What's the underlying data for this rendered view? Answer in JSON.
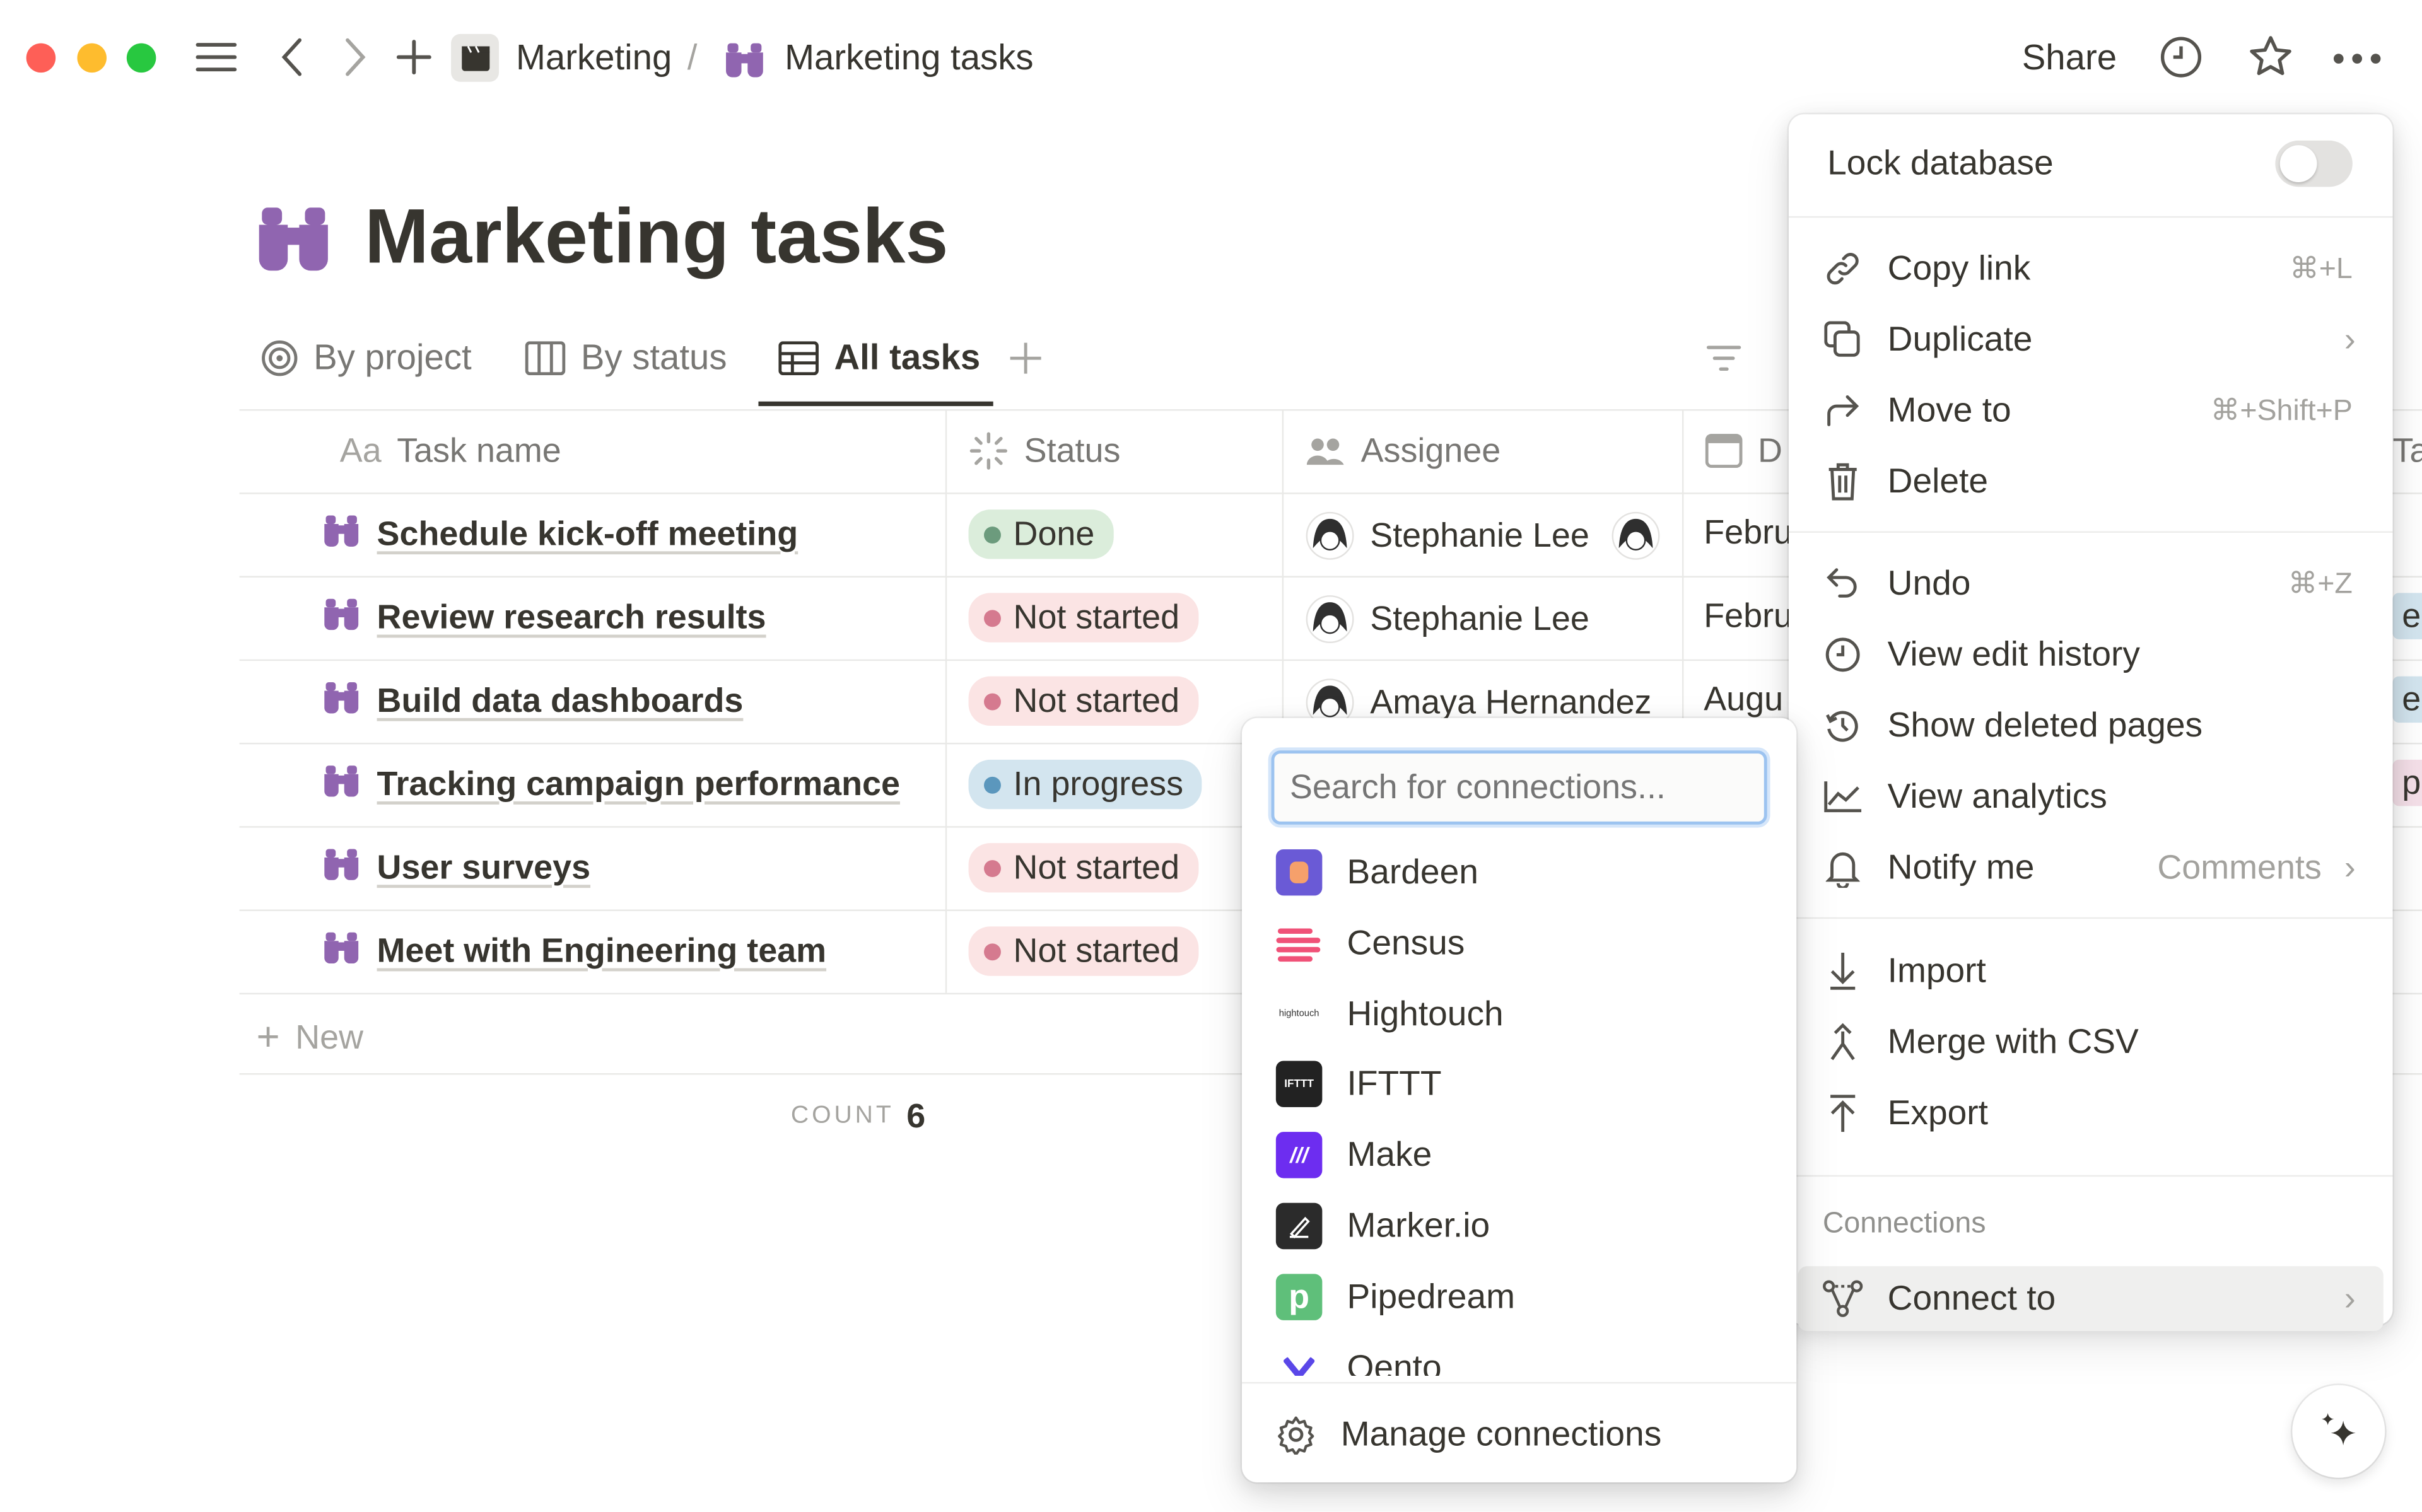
{
  "topbar": {
    "breadcrumb_parent": "Marketing",
    "breadcrumb_sep": "/",
    "breadcrumb_current": "Marketing tasks",
    "share_label": "Share"
  },
  "page": {
    "title": "Marketing tasks"
  },
  "tabs": [
    {
      "label": "By project"
    },
    {
      "label": "By status"
    },
    {
      "label": "All tasks"
    }
  ],
  "table": {
    "headers": {
      "prefix": "Aa",
      "task": "Task name",
      "status": "Status",
      "assignee": "Assignee",
      "date": "D",
      "tags": "Ta"
    },
    "rows": [
      {
        "task": "Schedule kick-off meeting",
        "status": "Done",
        "assignee": "Stephanie Lee",
        "date": "Febru",
        "tag": ""
      },
      {
        "task": "Review research results",
        "status": "Not started",
        "assignee": "Stephanie Lee",
        "date": "Febru",
        "tag": "eb"
      },
      {
        "task": "Build data dashboards",
        "status": "Not started",
        "assignee": "Amaya Hernandez",
        "date": "Augu",
        "tag": "eb"
      },
      {
        "task": "Tracking campaign performance",
        "status": "In progress",
        "assignee": "",
        "date": "",
        "tag": "pr"
      },
      {
        "task": "User surveys",
        "status": "Not started",
        "assignee": "",
        "date": "",
        "tag": ""
      },
      {
        "task": "Meet with Engineering team",
        "status": "Not started",
        "assignee": "",
        "date": "",
        "tag": ""
      }
    ],
    "new_label": "New",
    "count_label": "COUNT",
    "count_value": "6"
  },
  "status_colors": {
    "Done": "#dbeddb",
    "Not started": "#fbe4e4",
    "In progress": "#d3e5ef"
  },
  "connections_popup": {
    "search_placeholder": "Search for connections...",
    "items": [
      {
        "name": "Bardeen"
      },
      {
        "name": "Census"
      },
      {
        "name": "Hightouch",
        "logo_text": "hightouch"
      },
      {
        "name": "IFTTT",
        "logo_text": "IFTTT"
      },
      {
        "name": "Make"
      },
      {
        "name": "Marker.io"
      },
      {
        "name": "Pipedream",
        "logo_text": "p"
      },
      {
        "name": "Oento"
      }
    ],
    "manage_label": "Manage connections"
  },
  "menu": {
    "lock_label": "Lock database",
    "lock_on": false,
    "copy_link": "Copy link",
    "copy_link_sc": "⌘+L",
    "duplicate": "Duplicate",
    "move_to": "Move to",
    "move_to_sc": "⌘+Shift+P",
    "delete": "Delete",
    "undo": "Undo",
    "undo_sc": "⌘+Z",
    "edit_history": "View edit history",
    "deleted_pages": "Show deleted pages",
    "analytics": "View analytics",
    "notify": "Notify me",
    "notify_value": "Comments",
    "import": "Import",
    "merge_csv": "Merge with CSV",
    "export": "Export",
    "section_connections": "Connections",
    "connect_to": "Connect to"
  }
}
